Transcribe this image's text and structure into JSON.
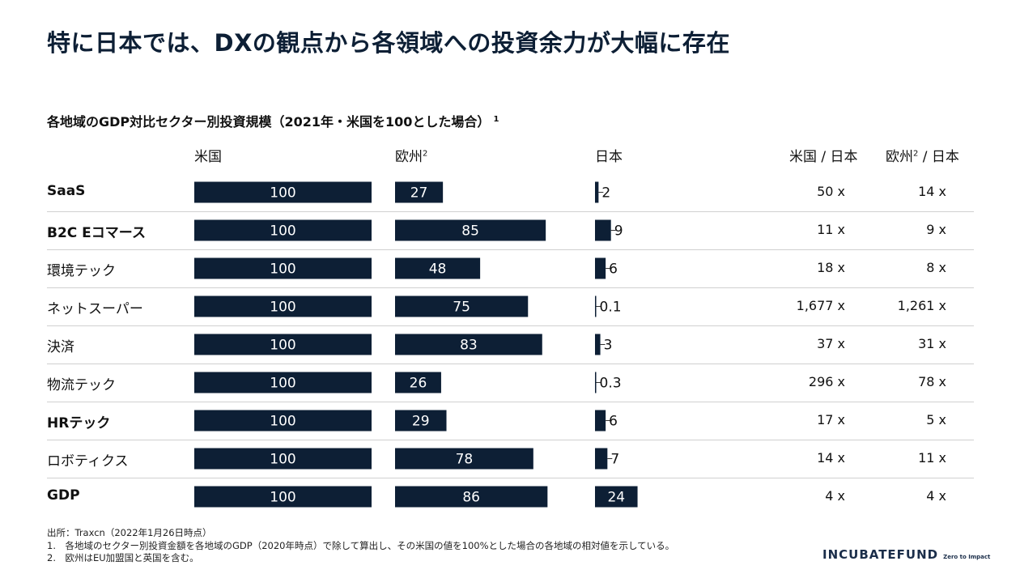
{
  "title": "特に日本では、DXの観点から各領域への投資余力が大幅に存在",
  "subtitle": "各地域のGDP対比セクター別投資規模（2021年・米国を100とした場合）",
  "subtitle_note": "1",
  "headers": {
    "us": "米国",
    "eu": "欧州",
    "eu_sup": "2",
    "jp": "日本",
    "us_jp": "米国 / 日本",
    "eu_jp": "欧州",
    "eu_jp_sup": "2",
    "eu_jp_rest": "/ 日本"
  },
  "chart_data": {
    "type": "bar",
    "categories": [
      "SaaS",
      "B2C Eコマース",
      "環境テック",
      "ネットスーパー",
      "決済",
      "物流テック",
      "HRテック",
      "ロボティクス",
      "GDP"
    ],
    "series": [
      {
        "name": "米国",
        "values": [
          100,
          100,
          100,
          100,
          100,
          100,
          100,
          100,
          100
        ],
        "labels": [
          "100",
          "100",
          "100",
          "100",
          "100",
          "100",
          "100",
          "100",
          "100"
        ]
      },
      {
        "name": "欧州2",
        "values": [
          27,
          85,
          48,
          75,
          83,
          26,
          29,
          78,
          86
        ],
        "labels": [
          "27",
          "85",
          "48",
          "75",
          "83",
          "26",
          "29",
          "78",
          "86"
        ]
      },
      {
        "name": "日本",
        "values": [
          2,
          9,
          6,
          0.1,
          3,
          0.3,
          6,
          7,
          24
        ],
        "labels": [
          "2",
          "9",
          "6",
          "0.1",
          "3",
          "0.3",
          "6",
          "7",
          "24"
        ]
      }
    ],
    "ratios": {
      "us_jp": [
        "50 x",
        "11 x",
        "18 x",
        "1,677 x",
        "37 x",
        "296 x",
        "17 x",
        "14 x",
        "4 x"
      ],
      "eu_jp": [
        "14 x",
        "9 x",
        "8 x",
        "1,261 x",
        "31 x",
        "78 x",
        "5 x",
        "11 x",
        "4 x"
      ]
    },
    "bold_rows": [
      0,
      1,
      6,
      8
    ],
    "bar_color": "#0d1f35",
    "label_color_inside": "#ffffff",
    "label_color_outside": "#111111"
  },
  "footnotes": [
    "出所：Traxcn（2022年1月26日時点）",
    "1.　各地域のセクター別投資金額を各地域のGDP（2020年時点）で除して算出し、その米国の値を100%とした場合の各地域の相対値を示している。",
    "2.　欧州はEU加盟国と英国を含む。"
  ],
  "logo": {
    "main": "INCUBATEFUND",
    "tag": "Zero to Impact"
  }
}
